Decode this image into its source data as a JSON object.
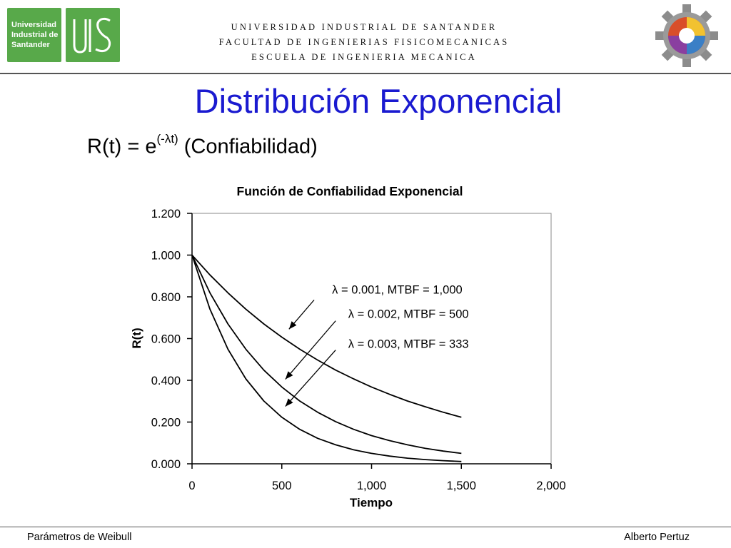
{
  "header": {
    "logo_text": [
      "Universidad",
      "Industrial de",
      "Santander"
    ],
    "lines": [
      "UNIVERSIDAD INDUSTRIAL DE SANTANDER",
      "FACULTAD DE INGENIERIAS FISICOMECANICAS",
      "ESCUELA DE INGENIERIA MECANICA"
    ]
  },
  "slide": {
    "title": "Distribución Exponencial",
    "formula_base": "R(t) = e",
    "formula_exponent": "(-λt)",
    "formula_suffix": " (Confiabilidad)"
  },
  "chart_data": {
    "type": "line",
    "title": "Función de Confiabilidad Exponencial",
    "xlabel": "Tiempo",
    "ylabel": "R(t)",
    "xlim": [
      0,
      2000
    ],
    "ylim": [
      0,
      1.2
    ],
    "x_ticks": [
      "0",
      "500",
      "1,000",
      "1,500",
      "2,000"
    ],
    "y_ticks": [
      "0.000",
      "0.200",
      "0.400",
      "0.600",
      "0.800",
      "1.000",
      "1.200"
    ],
    "x": [
      0,
      100,
      200,
      300,
      400,
      500,
      600,
      700,
      800,
      900,
      1000,
      1100,
      1200,
      1300,
      1400,
      1500
    ],
    "series": [
      {
        "name": "λ = 0.001, MTBF = 1,000",
        "values": [
          1.0,
          0.905,
          0.819,
          0.741,
          0.67,
          0.607,
          0.549,
          0.497,
          0.449,
          0.407,
          0.368,
          0.333,
          0.301,
          0.273,
          0.247,
          0.223
        ]
      },
      {
        "name": "λ = 0.002, MTBF = 500",
        "values": [
          1.0,
          0.819,
          0.67,
          0.549,
          0.449,
          0.368,
          0.301,
          0.247,
          0.202,
          0.165,
          0.135,
          0.111,
          0.091,
          0.074,
          0.061,
          0.05
        ]
      },
      {
        "name": "λ = 0.003, MTBF = 333",
        "values": [
          1.0,
          0.741,
          0.549,
          0.407,
          0.301,
          0.223,
          0.165,
          0.122,
          0.091,
          0.067,
          0.05,
          0.037,
          0.027,
          0.02,
          0.015,
          0.011
        ]
      }
    ],
    "annotations": [
      {
        "text": "λ = 0.001, MTBF = 1,000",
        "label_x": 780,
        "label_y": 0.815,
        "arrow_tail": [
          680,
          0.785
        ],
        "arrow_head": [
          540,
          0.645
        ]
      },
      {
        "text": "λ = 0.002, MTBF = 500",
        "label_x": 870,
        "label_y": 0.7,
        "arrow_tail": [
          800,
          0.685
        ],
        "arrow_head": [
          520,
          0.405
        ]
      },
      {
        "text": "λ = 0.003, MTBF = 333",
        "label_x": 870,
        "label_y": 0.555,
        "arrow_tail": [
          800,
          0.545
        ],
        "arrow_head": [
          520,
          0.275
        ]
      }
    ],
    "grid": false,
    "legend": "none"
  },
  "footer": {
    "left": "Parámetros de Weibull",
    "right": "Alberto Pertuz"
  },
  "colors": {
    "title_blue": "#1a1ad0",
    "uis_green": "#58a94a"
  }
}
